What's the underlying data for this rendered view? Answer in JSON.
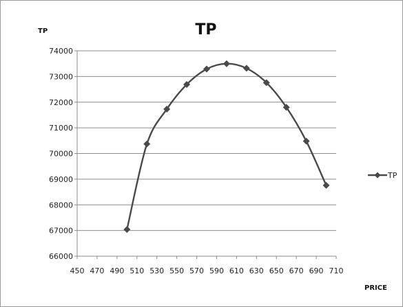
{
  "chart_data": {
    "type": "line",
    "title": "TP",
    "xlabel": "PRICE",
    "ylabel": "TP",
    "xlim": [
      450,
      710
    ],
    "ylim": [
      66000,
      74000
    ],
    "x_ticks": [
      450,
      470,
      490,
      510,
      530,
      550,
      570,
      590,
      610,
      630,
      650,
      670,
      690,
      710
    ],
    "y_ticks": [
      66000,
      67000,
      68000,
      69000,
      70000,
      71000,
      72000,
      73000,
      74000
    ],
    "grid": "horizontal",
    "legend_position": "right",
    "series": [
      {
        "name": "TP",
        "color": "#4a4a4a",
        "marker": "diamond",
        "smooth": true,
        "x": [
          500,
          520,
          540,
          560,
          580,
          600,
          620,
          640,
          660,
          680,
          700
        ],
        "y": [
          67040,
          70370,
          71730,
          72690,
          73290,
          73500,
          73320,
          72760,
          71800,
          70480,
          68760
        ]
      }
    ]
  }
}
